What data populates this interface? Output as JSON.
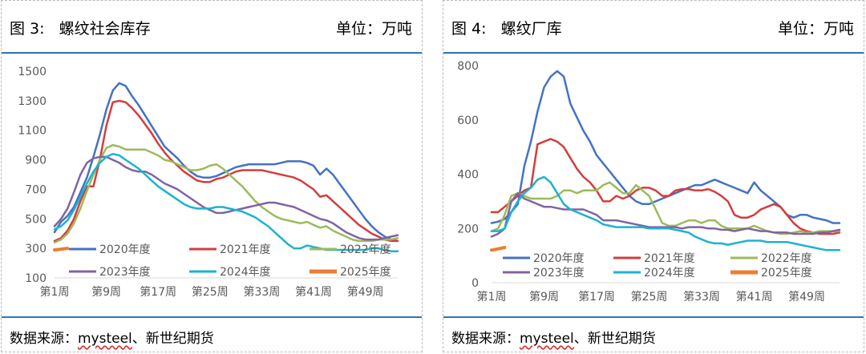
{
  "source_prefix": "数据来源：",
  "source_underlined": "mysteel",
  "source_suffix": "、新世纪期货",
  "charts": [
    {
      "figure_label": "图 3:",
      "title": "螺纹社会库存",
      "unit": "单位：万吨",
      "chart_data": {
        "type": "line",
        "ylim": [
          100,
          1500
        ],
        "yticks": [
          100,
          300,
          500,
          700,
          900,
          1100,
          1300,
          1500
        ],
        "xticks": [
          "第1周",
          "第9周",
          "第17周",
          "第25周",
          "第33周",
          "第41周",
          "第49周"
        ],
        "legend_position": "bottom-inside",
        "series": [
          {
            "name": "2020年度",
            "color": "#4472c4",
            "values": [
              410,
              480,
              520,
              580,
              680,
              780,
              920,
              1070,
              1240,
              1370,
              1420,
              1400,
              1330,
              1270,
              1200,
              1130,
              1060,
              990,
              950,
              910,
              860,
              820,
              790,
              780,
              780,
              790,
              810,
              830,
              850,
              860,
              870,
              870,
              870,
              870,
              870,
              880,
              890,
              890,
              890,
              880,
              860,
              800,
              840,
              800,
              740,
              680,
              620,
              560,
              500,
              450,
              410,
              380,
              360,
              350
            ]
          },
          {
            "name": "2021年度",
            "color": "#d63c3c",
            "values": [
              350,
              370,
              420,
              500,
              620,
              720,
              720,
              900,
              1130,
              1290,
              1300,
              1290,
              1250,
              1200,
              1140,
              1080,
              1010,
              950,
              900,
              860,
              820,
              790,
              760,
              750,
              750,
              770,
              780,
              800,
              820,
              830,
              830,
              830,
              830,
              820,
              810,
              800,
              790,
              780,
              760,
              730,
              700,
              650,
              660,
              620,
              580,
              540,
              500,
              460,
              430,
              400,
              380,
              360,
              350,
              350
            ]
          },
          {
            "name": "2022年度",
            "color": "#9bbb59",
            "values": [
              340,
              360,
              400,
              470,
              570,
              690,
              800,
              900,
              980,
              1000,
              990,
              970,
              970,
              970,
              970,
              950,
              930,
              900,
              890,
              870,
              850,
              830,
              830,
              840,
              860,
              870,
              840,
              800,
              760,
              720,
              670,
              620,
              580,
              550,
              520,
              500,
              490,
              480,
              470,
              480,
              460,
              440,
              450,
              420,
              400,
              380,
              360,
              350,
              350,
              350,
              360,
              360,
              360,
              370
            ]
          },
          {
            "name": "2023年度",
            "color": "#8064a2",
            "values": [
              450,
              500,
              570,
              680,
              800,
              880,
              910,
              920,
              920,
              900,
              880,
              850,
              830,
              820,
              820,
              800,
              770,
              740,
              720,
              700,
              670,
              640,
              610,
              580,
              560,
              540,
              540,
              550,
              560,
              570,
              580,
              590,
              600,
              610,
              610,
              600,
              590,
              580,
              560,
              540,
              520,
              500,
              490,
              470,
              440,
              410,
              390,
              370,
              360,
              360,
              360,
              370,
              380,
              390
            ]
          },
          {
            "name": "2024年度",
            "color": "#1bb3cf",
            "values": [
              430,
              450,
              490,
              560,
              650,
              740,
              820,
              880,
              920,
              940,
              930,
              900,
              870,
              840,
              800,
              760,
              720,
              690,
              660,
              630,
              600,
              580,
              570,
              570,
              570,
              580,
              580,
              570,
              560,
              550,
              530,
              510,
              480,
              450,
              410,
              370,
              330,
              300,
              300,
              320,
              310,
              300,
              290,
              290,
              290,
              290,
              290,
              290,
              290,
              300,
              300,
              290,
              280,
              280
            ]
          },
          {
            "name": "2025年度",
            "color": "#ed7d31",
            "values": [
              290,
              295,
              300
            ]
          }
        ]
      }
    },
    {
      "figure_label": "图 4:",
      "title": "螺纹厂库",
      "unit": "单位：万吨",
      "chart_data": {
        "type": "line",
        "ylim": [
          0,
          800
        ],
        "yticks": [
          0,
          200,
          400,
          600,
          800
        ],
        "xticks": [
          "第1周",
          "第9周",
          "第17周",
          "第25周",
          "第33周",
          "第41周",
          "第49周"
        ],
        "legend_position": "bottom-inside",
        "series": [
          {
            "name": "2020年度",
            "color": "#4472c4",
            "values": [
              220,
              225,
              235,
              260,
              290,
              430,
              520,
              630,
              720,
              760,
              780,
              760,
              660,
              610,
              560,
              520,
              470,
              440,
              410,
              380,
              350,
              320,
              300,
              290,
              290,
              300,
              310,
              320,
              330,
              340,
              350,
              360,
              360,
              370,
              380,
              370,
              360,
              350,
              340,
              330,
              370,
              340,
              320,
              300,
              280,
              250,
              240,
              250,
              250,
              240,
              235,
              230,
              220,
              220
            ]
          },
          {
            "name": "2021年度",
            "color": "#d63c3c",
            "values": [
              260,
              260,
              280,
              300,
              320,
              340,
              350,
              510,
              520,
              530,
              520,
              500,
              460,
              420,
              390,
              370,
              340,
              300,
              300,
              320,
              310,
              320,
              340,
              350,
              350,
              340,
              320,
              320,
              340,
              345,
              345,
              340,
              340,
              345,
              335,
              320,
              300,
              250,
              240,
              240,
              250,
              270,
              280,
              290,
              280,
              250,
              220,
              200,
              190,
              185,
              180,
              180,
              180,
              185
            ]
          },
          {
            "name": "2022年度",
            "color": "#9bbb59",
            "values": [
              190,
              200,
              250,
              320,
              330,
              320,
              310,
              310,
              310,
              310,
              320,
              340,
              340,
              330,
              340,
              340,
              340,
              360,
              370,
              350,
              330,
              330,
              360,
              340,
              320,
              270,
              220,
              210,
              210,
              220,
              230,
              230,
              220,
              230,
              230,
              210,
              200,
              200,
              200,
              200,
              210,
              200,
              190,
              185,
              180,
              180,
              185,
              190,
              185,
              185,
              190,
              190,
              190,
              190
            ]
          },
          {
            "name": "2023年度",
            "color": "#8064a2",
            "values": [
              170,
              180,
              200,
              300,
              330,
              310,
              300,
              290,
              280,
              280,
              275,
              270,
              270,
              270,
              270,
              260,
              250,
              230,
              230,
              230,
              225,
              220,
              215,
              210,
              205,
              205,
              205,
              205,
              205,
              200,
              205,
              205,
              205,
              200,
              200,
              195,
              195,
              190,
              195,
              200,
              195,
              190,
              190,
              185,
              185,
              185,
              180,
              180,
              180,
              180,
              185,
              185,
              190,
              195
            ]
          },
          {
            "name": "2024年度",
            "color": "#1bb3cf",
            "values": [
              190,
              190,
              200,
              260,
              300,
              330,
              350,
              380,
              390,
              370,
              330,
              290,
              270,
              260,
              250,
              240,
              230,
              215,
              210,
              205,
              205,
              205,
              205,
              205,
              200,
              200,
              200,
              200,
              195,
              190,
              185,
              170,
              160,
              150,
              145,
              145,
              140,
              145,
              150,
              155,
              155,
              155,
              150,
              150,
              150,
              150,
              145,
              140,
              135,
              130,
              125,
              120,
              120,
              120
            ]
          },
          {
            "name": "2025年度",
            "color": "#ed7d31",
            "values": [
              120,
              125,
              130
            ]
          }
        ]
      }
    }
  ]
}
